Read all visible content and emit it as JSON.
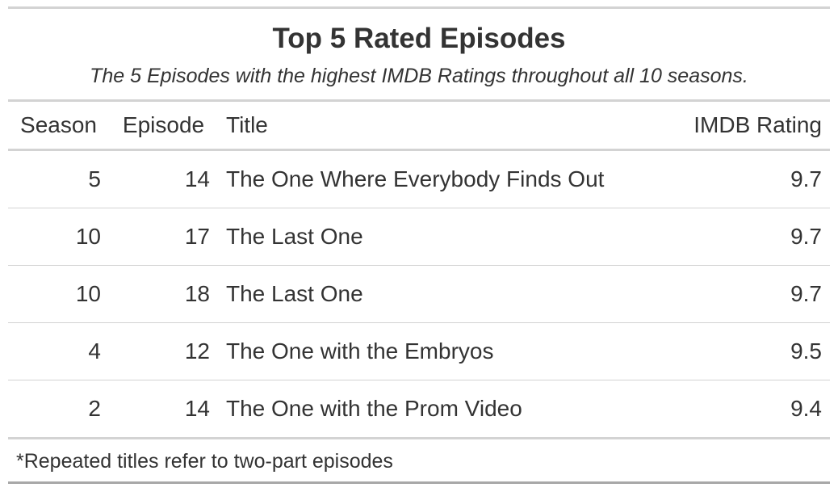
{
  "chart_data": {
    "type": "table",
    "title": "Top 5 Rated Episodes",
    "subtitle": "The 5 Episodes with the highest IMDB Ratings throughout all 10 seasons.",
    "columns": [
      "Season",
      "Episode",
      "Title",
      "IMDB Rating"
    ],
    "rows": [
      {
        "season": "5",
        "episode": "14",
        "title": "The One Where Everybody Finds Out",
        "rating": "9.7"
      },
      {
        "season": "10",
        "episode": "17",
        "title": "The Last One",
        "rating": "9.7"
      },
      {
        "season": "10",
        "episode": "18",
        "title": "The Last One",
        "rating": "9.7"
      },
      {
        "season": "4",
        "episode": "12",
        "title": "The One with the Embryos",
        "rating": "9.5"
      },
      {
        "season": "2",
        "episode": "14",
        "title": "The One with the Prom Video",
        "rating": "9.4"
      }
    ],
    "footnote": "*Repeated titles refer to two-part episodes"
  },
  "colors": {
    "text": "#333333",
    "rule": "#d3d3d3"
  }
}
